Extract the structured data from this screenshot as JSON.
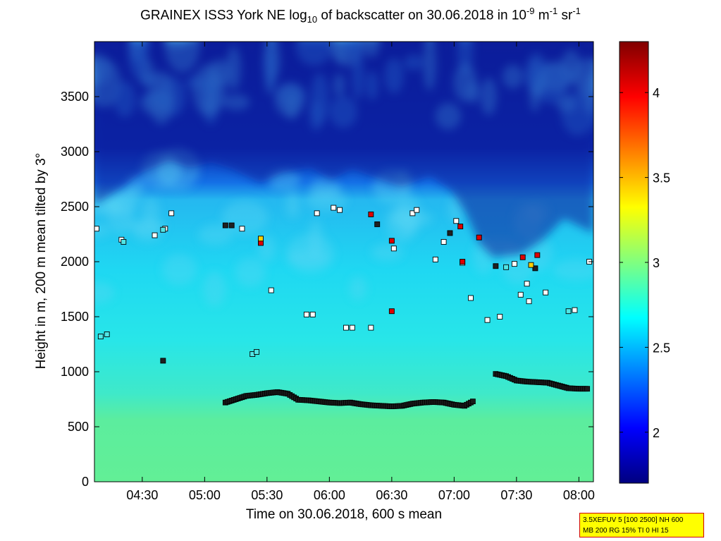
{
  "chart_data": {
    "type": "heatmap",
    "title": {
      "prefix": "GRAINEX ISS3 York NE log",
      "sub": "10",
      "middle": " of backscatter on 30.06.2018 in 10",
      "sup1": "-9",
      "m": " m",
      "sup2": "-1",
      "sr": " sr",
      "sup3": "-1"
    },
    "xlabel": "Time on 30.06.2018, 600 s mean",
    "ylabel": "Height in m, 200 m mean tilted by 3°",
    "xlim": [
      "04:07",
      "08:07"
    ],
    "ylim": [
      0,
      4000
    ],
    "x_ticks": [
      "04:30",
      "05:00",
      "05:30",
      "06:00",
      "06:30",
      "07:00",
      "07:30",
      "08:00"
    ],
    "y_ticks": [
      0,
      500,
      1000,
      1500,
      2000,
      2500,
      3000,
      3500
    ],
    "colorbar": {
      "range": [
        1.7,
        4.3
      ],
      "ticks": [
        "2",
        "2.5",
        "3",
        "3.5",
        "4"
      ],
      "colormap": "jet"
    },
    "field_levels": {
      "surface_layer": 2.9,
      "mixed_layer": 2.7,
      "residual_layer": 2.5,
      "free_troposphere": 1.8
    },
    "black_layer_heights": {
      "x": [
        "05:10",
        "05:15",
        "05:20",
        "05:25",
        "05:30",
        "05:35",
        "05:40",
        "05:45",
        "05:50",
        "05:55",
        "06:00",
        "06:05",
        "06:10",
        "06:15",
        "06:20",
        "06:25",
        "06:30",
        "06:35",
        "06:40",
        "06:45",
        "06:50",
        "06:55",
        "07:00",
        "07:05",
        "07:10",
        "07:15",
        "07:20",
        "07:25",
        "07:30",
        "07:35",
        "07:40",
        "07:45",
        "07:50",
        "07:55",
        "08:00",
        "08:05"
      ],
      "y": [
        720,
        750,
        780,
        790,
        805,
        815,
        800,
        745,
        740,
        730,
        720,
        715,
        720,
        705,
        695,
        690,
        685,
        690,
        710,
        720,
        725,
        720,
        700,
        690,
        740,
        null,
        980,
        960,
        920,
        910,
        905,
        900,
        875,
        850,
        845,
        845
      ]
    },
    "marker_series": [
      {
        "color": "#ffffff",
        "points": [
          [
            "04:08",
            2300
          ],
          [
            "04:20",
            2200
          ],
          [
            "04:36",
            2240
          ],
          [
            "04:41",
            2300
          ],
          [
            "04:44",
            2440
          ],
          [
            "05:18",
            2300
          ],
          [
            "05:32",
            1740
          ],
          [
            "05:49",
            1520
          ],
          [
            "05:52",
            1520
          ],
          [
            "05:54",
            2440
          ],
          [
            "06:02",
            2490
          ],
          [
            "06:05",
            2470
          ],
          [
            "06:08",
            1400
          ],
          [
            "06:11",
            1400
          ],
          [
            "06:20",
            1400
          ],
          [
            "06:31",
            2120
          ],
          [
            "06:40",
            2440
          ],
          [
            "06:42",
            2470
          ],
          [
            "06:51",
            2020
          ],
          [
            "06:55",
            2180
          ],
          [
            "07:01",
            2370
          ],
          [
            "07:04",
            1990
          ],
          [
            "07:08",
            1670
          ],
          [
            "07:16",
            1470
          ],
          [
            "07:22",
            1500
          ],
          [
            "07:29",
            1980
          ],
          [
            "07:32",
            1700
          ],
          [
            "07:35",
            1800
          ],
          [
            "07:36",
            1640
          ],
          [
            "07:44",
            1720
          ],
          [
            "07:58",
            1560
          ],
          [
            "08:05",
            2000
          ]
        ]
      },
      {
        "color": "#50e6e6",
        "points": [
          [
            "04:10",
            1320
          ],
          [
            "04:13",
            1340
          ],
          [
            "04:21",
            2180
          ],
          [
            "04:40",
            2290
          ],
          [
            "05:23",
            1160
          ],
          [
            "05:25",
            1180
          ],
          [
            "05:27",
            2180
          ],
          [
            "07:25",
            1950
          ],
          [
            "07:55",
            1550
          ]
        ]
      },
      {
        "color": "#202020",
        "points": [
          [
            "04:40",
            1100
          ],
          [
            "05:10",
            2330
          ],
          [
            "05:13",
            2330
          ],
          [
            "06:23",
            2340
          ],
          [
            "06:58",
            2260
          ],
          [
            "07:20",
            1960
          ],
          [
            "07:39",
            1940
          ]
        ]
      },
      {
        "color": "#e00000",
        "points": [
          [
            "05:27",
            2170
          ],
          [
            "06:20",
            2430
          ],
          [
            "06:30",
            2190
          ],
          [
            "06:30",
            1550
          ],
          [
            "07:03",
            2320
          ],
          [
            "07:04",
            2000
          ],
          [
            "07:12",
            2220
          ],
          [
            "07:33",
            2040
          ],
          [
            "07:40",
            2060
          ]
        ]
      },
      {
        "color": "#ffd000",
        "points": [
          [
            "05:27",
            2210
          ],
          [
            "07:37",
            1970
          ]
        ]
      }
    ]
  },
  "infobox": {
    "line1": "3.5XEFUV 5 [100 2500] NH 600",
    "line2": "MB 200 RG 15% TI 0 HI 15"
  }
}
